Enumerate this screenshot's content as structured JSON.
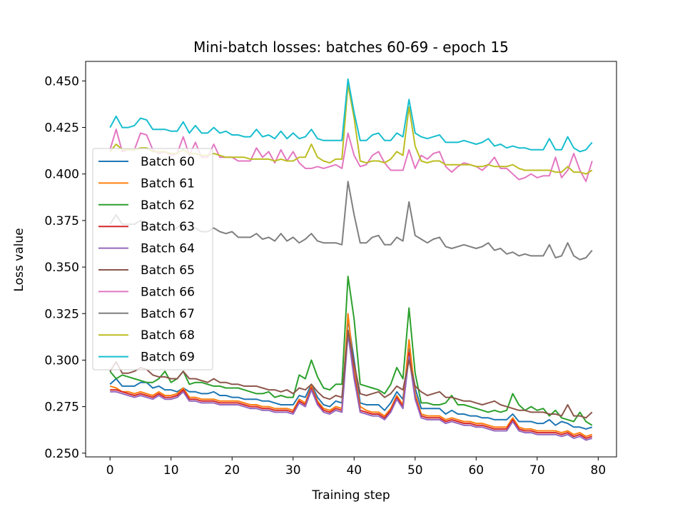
{
  "chart_data": {
    "type": "line",
    "title": "Mini-batch losses: batches 60-69 - epoch 15",
    "xlabel": "Training step",
    "ylabel": "Loss value",
    "xlim": [
      -4,
      83
    ],
    "ylim": [
      0.248,
      0.4605
    ],
    "xticks": [
      0,
      10,
      20,
      30,
      40,
      50,
      60,
      70,
      80
    ],
    "yticks": [
      0.25,
      0.275,
      0.3,
      0.325,
      0.35,
      0.375,
      0.4,
      0.425,
      0.45
    ],
    "ytick_labels": [
      "0.250",
      "0.275",
      "0.300",
      "0.325",
      "0.350",
      "0.375",
      "0.400",
      "0.425",
      "0.450"
    ],
    "legend_position": "center-left",
    "grid": false,
    "x": [
      0,
      1,
      2,
      3,
      4,
      5,
      6,
      7,
      8,
      9,
      10,
      11,
      12,
      13,
      14,
      15,
      16,
      17,
      18,
      19,
      20,
      21,
      22,
      23,
      24,
      25,
      26,
      27,
      28,
      29,
      30,
      31,
      32,
      33,
      34,
      35,
      36,
      37,
      38,
      39,
      40,
      41,
      42,
      43,
      44,
      45,
      46,
      47,
      48,
      49,
      50,
      51,
      52,
      53,
      54,
      55,
      56,
      57,
      58,
      59,
      60,
      61,
      62,
      63,
      64,
      65,
      66,
      67,
      68,
      69,
      70,
      71,
      72,
      73,
      74,
      75,
      76,
      77,
      78,
      79
    ],
    "series": [
      {
        "name": "Batch 60",
        "color": "#1f77b4",
        "values": [
          0.287,
          0.29,
          0.286,
          0.286,
          0.286,
          0.288,
          0.288,
          0.285,
          0.286,
          0.284,
          0.284,
          0.283,
          0.285,
          0.283,
          0.283,
          0.282,
          0.282,
          0.283,
          0.281,
          0.281,
          0.28,
          0.28,
          0.279,
          0.279,
          0.279,
          0.278,
          0.278,
          0.277,
          0.276,
          0.276,
          0.276,
          0.281,
          0.28,
          0.287,
          0.28,
          0.276,
          0.275,
          0.278,
          0.277,
          0.322,
          0.3,
          0.277,
          0.276,
          0.276,
          0.276,
          0.273,
          0.277,
          0.283,
          0.279,
          0.306,
          0.285,
          0.274,
          0.274,
          0.274,
          0.274,
          0.271,
          0.273,
          0.271,
          0.271,
          0.27,
          0.27,
          0.269,
          0.269,
          0.268,
          0.268,
          0.268,
          0.271,
          0.267,
          0.267,
          0.267,
          0.266,
          0.266,
          0.268,
          0.265,
          0.267,
          0.266,
          0.264,
          0.264,
          0.263,
          0.264
        ]
      },
      {
        "name": "Batch 61",
        "color": "#ff7f0e",
        "values": [
          0.286,
          0.285,
          0.283,
          0.283,
          0.282,
          0.283,
          0.282,
          0.281,
          0.283,
          0.281,
          0.281,
          0.282,
          0.285,
          0.28,
          0.28,
          0.279,
          0.279,
          0.279,
          0.278,
          0.278,
          0.278,
          0.278,
          0.277,
          0.276,
          0.276,
          0.275,
          0.275,
          0.274,
          0.274,
          0.274,
          0.273,
          0.279,
          0.277,
          0.286,
          0.278,
          0.274,
          0.273,
          0.275,
          0.274,
          0.325,
          0.294,
          0.275,
          0.273,
          0.272,
          0.272,
          0.27,
          0.274,
          0.281,
          0.276,
          0.311,
          0.282,
          0.271,
          0.27,
          0.27,
          0.27,
          0.268,
          0.269,
          0.268,
          0.267,
          0.267,
          0.266,
          0.266,
          0.265,
          0.264,
          0.264,
          0.264,
          0.269,
          0.264,
          0.263,
          0.263,
          0.262,
          0.262,
          0.262,
          0.262,
          0.261,
          0.262,
          0.26,
          0.261,
          0.259,
          0.26
        ]
      },
      {
        "name": "Batch 62",
        "color": "#2ca02c",
        "values": [
          0.294,
          0.29,
          0.292,
          0.291,
          0.29,
          0.289,
          0.288,
          0.288,
          0.29,
          0.294,
          0.288,
          0.29,
          0.294,
          0.287,
          0.288,
          0.288,
          0.287,
          0.286,
          0.286,
          0.285,
          0.285,
          0.285,
          0.284,
          0.283,
          0.282,
          0.282,
          0.283,
          0.28,
          0.281,
          0.28,
          0.28,
          0.292,
          0.29,
          0.3,
          0.291,
          0.285,
          0.284,
          0.287,
          0.287,
          0.345,
          0.322,
          0.287,
          0.286,
          0.285,
          0.284,
          0.282,
          0.287,
          0.296,
          0.29,
          0.328,
          0.293,
          0.277,
          0.277,
          0.276,
          0.276,
          0.277,
          0.281,
          0.276,
          0.276,
          0.275,
          0.274,
          0.273,
          0.272,
          0.273,
          0.272,
          0.273,
          0.282,
          0.276,
          0.273,
          0.275,
          0.273,
          0.274,
          0.27,
          0.273,
          0.269,
          0.268,
          0.267,
          0.272,
          0.267,
          0.265
        ]
      },
      {
        "name": "Batch 63",
        "color": "#d62728",
        "values": [
          0.284,
          0.284,
          0.283,
          0.282,
          0.281,
          0.282,
          0.281,
          0.28,
          0.282,
          0.28,
          0.28,
          0.281,
          0.284,
          0.279,
          0.279,
          0.278,
          0.278,
          0.278,
          0.277,
          0.277,
          0.277,
          0.277,
          0.276,
          0.275,
          0.275,
          0.274,
          0.274,
          0.273,
          0.273,
          0.273,
          0.272,
          0.278,
          0.276,
          0.285,
          0.277,
          0.273,
          0.272,
          0.274,
          0.273,
          0.316,
          0.292,
          0.273,
          0.272,
          0.271,
          0.271,
          0.269,
          0.273,
          0.28,
          0.275,
          0.304,
          0.28,
          0.27,
          0.269,
          0.269,
          0.269,
          0.267,
          0.268,
          0.267,
          0.266,
          0.266,
          0.265,
          0.265,
          0.264,
          0.263,
          0.263,
          0.263,
          0.268,
          0.263,
          0.262,
          0.262,
          0.261,
          0.261,
          0.261,
          0.261,
          0.26,
          0.261,
          0.259,
          0.26,
          0.258,
          0.259
        ]
      },
      {
        "name": "Batch 64",
        "color": "#9467bd",
        "values": [
          0.283,
          0.283,
          0.282,
          0.281,
          0.28,
          0.281,
          0.28,
          0.279,
          0.281,
          0.279,
          0.279,
          0.28,
          0.283,
          0.278,
          0.278,
          0.277,
          0.277,
          0.277,
          0.276,
          0.276,
          0.276,
          0.276,
          0.275,
          0.274,
          0.274,
          0.273,
          0.273,
          0.272,
          0.272,
          0.272,
          0.271,
          0.277,
          0.275,
          0.284,
          0.276,
          0.272,
          0.271,
          0.273,
          0.272,
          0.314,
          0.29,
          0.272,
          0.271,
          0.27,
          0.27,
          0.268,
          0.272,
          0.279,
          0.274,
          0.302,
          0.279,
          0.269,
          0.268,
          0.268,
          0.268,
          0.266,
          0.267,
          0.266,
          0.265,
          0.265,
          0.264,
          0.264,
          0.263,
          0.262,
          0.262,
          0.262,
          0.267,
          0.262,
          0.261,
          0.261,
          0.26,
          0.26,
          0.26,
          0.26,
          0.259,
          0.26,
          0.258,
          0.259,
          0.257,
          0.258
        ]
      },
      {
        "name": "Batch 65",
        "color": "#8c564b",
        "values": [
          0.294,
          0.299,
          0.293,
          0.293,
          0.294,
          0.296,
          0.295,
          0.292,
          0.291,
          0.291,
          0.29,
          0.29,
          0.294,
          0.29,
          0.29,
          0.289,
          0.288,
          0.29,
          0.288,
          0.288,
          0.287,
          0.287,
          0.286,
          0.286,
          0.286,
          0.285,
          0.284,
          0.284,
          0.283,
          0.284,
          0.282,
          0.285,
          0.284,
          0.287,
          0.283,
          0.28,
          0.279,
          0.281,
          0.28,
          0.316,
          0.298,
          0.282,
          0.281,
          0.282,
          0.283,
          0.28,
          0.282,
          0.286,
          0.284,
          0.3,
          0.286,
          0.283,
          0.281,
          0.282,
          0.283,
          0.28,
          0.28,
          0.279,
          0.278,
          0.278,
          0.277,
          0.276,
          0.277,
          0.278,
          0.276,
          0.275,
          0.274,
          0.273,
          0.273,
          0.272,
          0.272,
          0.272,
          0.271,
          0.271,
          0.27,
          0.276,
          0.27,
          0.27,
          0.269,
          0.272
        ]
      },
      {
        "name": "Batch 66",
        "color": "#e377c2",
        "values": [
          0.413,
          0.424,
          0.412,
          0.413,
          0.413,
          0.422,
          0.421,
          0.413,
          0.411,
          0.412,
          0.41,
          0.411,
          0.42,
          0.41,
          0.417,
          0.409,
          0.409,
          0.416,
          0.409,
          0.409,
          0.409,
          0.407,
          0.407,
          0.407,
          0.414,
          0.409,
          0.412,
          0.406,
          0.413,
          0.407,
          0.412,
          0.406,
          0.403,
          0.403,
          0.404,
          0.403,
          0.404,
          0.405,
          0.403,
          0.422,
          0.41,
          0.404,
          0.405,
          0.41,
          0.412,
          0.406,
          0.402,
          0.402,
          0.402,
          0.413,
          0.403,
          0.41,
          0.408,
          0.411,
          0.412,
          0.404,
          0.401,
          0.404,
          0.406,
          0.405,
          0.404,
          0.402,
          0.405,
          0.409,
          0.403,
          0.403,
          0.4,
          0.397,
          0.398,
          0.4,
          0.398,
          0.399,
          0.399,
          0.409,
          0.398,
          0.402,
          0.411,
          0.402,
          0.396,
          0.407
        ]
      },
      {
        "name": "Batch 67",
        "color": "#7f7f7f",
        "values": [
          0.373,
          0.378,
          0.373,
          0.373,
          0.373,
          0.375,
          0.374,
          0.372,
          0.371,
          0.371,
          0.37,
          0.371,
          0.374,
          0.37,
          0.371,
          0.369,
          0.369,
          0.371,
          0.369,
          0.368,
          0.369,
          0.366,
          0.366,
          0.366,
          0.368,
          0.365,
          0.366,
          0.364,
          0.368,
          0.364,
          0.366,
          0.363,
          0.365,
          0.368,
          0.364,
          0.363,
          0.363,
          0.363,
          0.362,
          0.396,
          0.378,
          0.363,
          0.363,
          0.366,
          0.367,
          0.362,
          0.362,
          0.366,
          0.364,
          0.385,
          0.367,
          0.365,
          0.363,
          0.365,
          0.366,
          0.361,
          0.36,
          0.361,
          0.362,
          0.361,
          0.36,
          0.361,
          0.363,
          0.359,
          0.36,
          0.357,
          0.358,
          0.356,
          0.357,
          0.356,
          0.356,
          0.356,
          0.362,
          0.355,
          0.356,
          0.363,
          0.356,
          0.354,
          0.355,
          0.359
        ]
      },
      {
        "name": "Batch 68",
        "color": "#bcbd22",
        "values": [
          0.412,
          0.416,
          0.413,
          0.413,
          0.413,
          0.414,
          0.414,
          0.412,
          0.412,
          0.412,
          0.411,
          0.411,
          0.413,
          0.411,
          0.411,
          0.41,
          0.41,
          0.411,
          0.41,
          0.409,
          0.409,
          0.409,
          0.409,
          0.408,
          0.408,
          0.408,
          0.408,
          0.407,
          0.408,
          0.407,
          0.407,
          0.409,
          0.409,
          0.416,
          0.409,
          0.407,
          0.406,
          0.408,
          0.408,
          0.448,
          0.43,
          0.407,
          0.406,
          0.407,
          0.407,
          0.406,
          0.408,
          0.412,
          0.41,
          0.436,
          0.415,
          0.407,
          0.406,
          0.407,
          0.407,
          0.405,
          0.405,
          0.405,
          0.405,
          0.405,
          0.404,
          0.404,
          0.405,
          0.404,
          0.404,
          0.404,
          0.405,
          0.403,
          0.402,
          0.402,
          0.402,
          0.402,
          0.402,
          0.401,
          0.401,
          0.404,
          0.401,
          0.401,
          0.4,
          0.402
        ]
      },
      {
        "name": "Batch 69",
        "color": "#17becf",
        "values": [
          0.425,
          0.431,
          0.425,
          0.425,
          0.426,
          0.43,
          0.429,
          0.424,
          0.424,
          0.424,
          0.423,
          0.423,
          0.428,
          0.422,
          0.426,
          0.422,
          0.422,
          0.425,
          0.422,
          0.423,
          0.421,
          0.421,
          0.42,
          0.42,
          0.424,
          0.42,
          0.421,
          0.419,
          0.423,
          0.419,
          0.422,
          0.419,
          0.42,
          0.424,
          0.419,
          0.418,
          0.418,
          0.418,
          0.418,
          0.451,
          0.433,
          0.418,
          0.418,
          0.421,
          0.422,
          0.418,
          0.418,
          0.422,
          0.42,
          0.44,
          0.422,
          0.42,
          0.419,
          0.42,
          0.421,
          0.417,
          0.417,
          0.417,
          0.418,
          0.417,
          0.416,
          0.417,
          0.419,
          0.415,
          0.416,
          0.414,
          0.415,
          0.414,
          0.414,
          0.413,
          0.413,
          0.413,
          0.419,
          0.413,
          0.413,
          0.42,
          0.414,
          0.412,
          0.413,
          0.417
        ]
      }
    ]
  }
}
